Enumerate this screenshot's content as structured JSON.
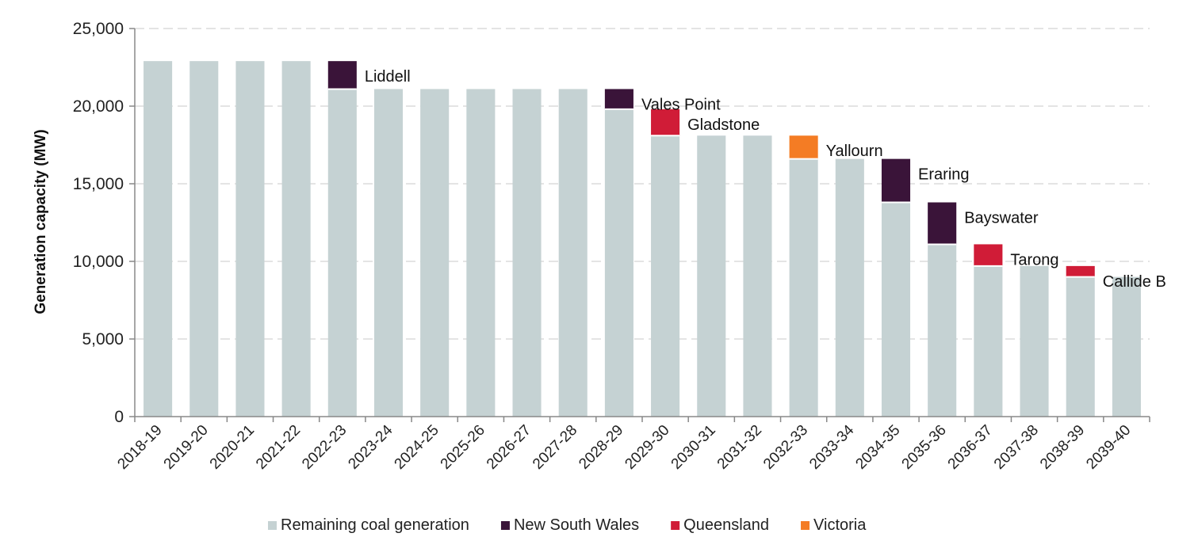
{
  "chart_data": {
    "type": "bar",
    "stacked": true,
    "title": "",
    "xlabel": "",
    "ylabel": "Generation capacity (MW)",
    "ylim": [
      0,
      25000
    ],
    "yticks": [
      0,
      5000,
      10000,
      15000,
      20000,
      25000
    ],
    "ytick_labels": [
      "0",
      "5,000",
      "10,000",
      "15,000",
      "20,000",
      "25,000"
    ],
    "grid": "horizontal dashed",
    "legend_position": "bottom",
    "categories": [
      "2018-19",
      "2019-20",
      "2020-21",
      "2021-22",
      "2022-23",
      "2023-24",
      "2024-25",
      "2025-26",
      "2026-27",
      "2027-28",
      "2028-29",
      "2029-30",
      "2030-31",
      "2031-32",
      "2032-33",
      "2033-34",
      "2034-35",
      "2035-36",
      "2036-37",
      "2037-38",
      "2038-39",
      "2039-40"
    ],
    "series": [
      {
        "name": "Remaining coal generation",
        "color": "#c5d2d3",
        "values": [
          22900,
          22900,
          22900,
          22900,
          21100,
          21100,
          21100,
          21100,
          21100,
          21100,
          19800,
          18100,
          18100,
          18100,
          16600,
          16600,
          13800,
          11100,
          9700,
          9700,
          9000,
          9000
        ]
      },
      {
        "name": "New South Wales",
        "color": "#3a1439",
        "values": [
          0,
          0,
          0,
          0,
          1800,
          0,
          0,
          0,
          0,
          0,
          1300,
          0,
          0,
          0,
          0,
          0,
          2800,
          2700,
          0,
          0,
          0,
          0
        ]
      },
      {
        "name": "Queensland",
        "color": "#d01c37",
        "values": [
          0,
          0,
          0,
          0,
          0,
          0,
          0,
          0,
          0,
          0,
          0,
          1700,
          0,
          0,
          0,
          0,
          0,
          0,
          1400,
          0,
          700,
          0
        ]
      },
      {
        "name": "Victoria",
        "color": "#f47c24",
        "values": [
          0,
          0,
          0,
          0,
          0,
          0,
          0,
          0,
          0,
          0,
          0,
          0,
          0,
          0,
          1500,
          0,
          0,
          0,
          0,
          0,
          0,
          0
        ]
      }
    ],
    "annotations": [
      {
        "text": "Liddell",
        "category": "2022-23"
      },
      {
        "text": "Vales Point",
        "category": "2028-29"
      },
      {
        "text": "Gladstone",
        "category": "2029-30"
      },
      {
        "text": "Yallourn",
        "category": "2032-33"
      },
      {
        "text": "Eraring",
        "category": "2034-35"
      },
      {
        "text": "Bayswater",
        "category": "2035-36"
      },
      {
        "text": "Tarong",
        "category": "2036-37"
      },
      {
        "text": "Callide B",
        "category": "2038-39"
      }
    ]
  }
}
